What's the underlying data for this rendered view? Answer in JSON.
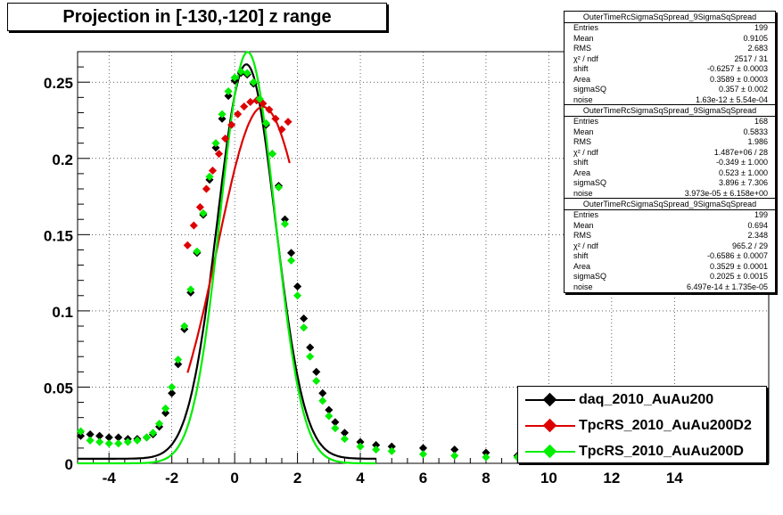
{
  "title": "Projection in [-130,-120] z range",
  "chart_data": {
    "type": "scatter",
    "title": "Projection in [-130,-120] z range",
    "xlabel": "",
    "ylabel": "",
    "xlim": [
      -5,
      17
    ],
    "ylim": [
      0,
      0.27
    ],
    "grid": true,
    "legend_position": "bottom-right",
    "x_ticks": [
      -4,
      -2,
      0,
      2,
      4,
      6,
      8,
      10,
      12,
      14
    ],
    "y_ticks": [
      0,
      0.05,
      0.1,
      0.15,
      0.2,
      0.25
    ],
    "y_tick_labels": [
      "0",
      "0.05",
      "0.1",
      "0.15",
      "0.2",
      "0.25"
    ],
    "series": [
      {
        "name": "daq_2010_AuAu200",
        "color": "#000000",
        "marker": "diamond",
        "points": [
          [
            -4.9,
            0.018
          ],
          [
            -4.6,
            0.019
          ],
          [
            -4.3,
            0.018
          ],
          [
            -4.0,
            0.017
          ],
          [
            -3.7,
            0.017
          ],
          [
            -3.4,
            0.016
          ],
          [
            -3.1,
            0.016
          ],
          [
            -2.8,
            0.017
          ],
          [
            -2.6,
            0.019
          ],
          [
            -2.4,
            0.024
          ],
          [
            -2.2,
            0.033
          ],
          [
            -2.0,
            0.046
          ],
          [
            -1.8,
            0.065
          ],
          [
            -1.6,
            0.088
          ],
          [
            -1.4,
            0.112
          ],
          [
            -1.2,
            0.138
          ],
          [
            -1.0,
            0.163
          ],
          [
            -0.8,
            0.186
          ],
          [
            -0.6,
            0.207
          ],
          [
            -0.4,
            0.226
          ],
          [
            -0.2,
            0.241
          ],
          [
            0.0,
            0.251
          ],
          [
            0.2,
            0.256
          ],
          [
            0.4,
            0.255
          ],
          [
            0.6,
            0.249
          ],
          [
            0.8,
            0.238
          ],
          [
            1.0,
            0.222
          ],
          [
            1.2,
            0.203
          ],
          [
            1.4,
            0.182
          ],
          [
            1.6,
            0.16
          ],
          [
            1.8,
            0.138
          ],
          [
            2.0,
            0.116
          ],
          [
            2.2,
            0.095
          ],
          [
            2.4,
            0.076
          ],
          [
            2.6,
            0.06
          ],
          [
            2.8,
            0.046
          ],
          [
            3.0,
            0.035
          ],
          [
            3.2,
            0.027
          ],
          [
            3.5,
            0.02
          ],
          [
            4.0,
            0.014
          ],
          [
            4.5,
            0.012
          ],
          [
            5.0,
            0.011
          ],
          [
            6.0,
            0.01
          ],
          [
            7.0,
            0.009
          ],
          [
            8.0,
            0.007
          ],
          [
            9.0,
            0.005
          ]
        ]
      },
      {
        "name": "TpcRS_2010_AuAu200D2",
        "color": "#dd0000",
        "marker": "diamond",
        "points": [
          [
            -1.5,
            0.143
          ],
          [
            -1.3,
            0.156
          ],
          [
            -1.1,
            0.168
          ],
          [
            -0.9,
            0.18
          ],
          [
            -0.7,
            0.192
          ],
          [
            -0.5,
            0.203
          ],
          [
            -0.3,
            0.213
          ],
          [
            -0.1,
            0.222
          ],
          [
            0.1,
            0.229
          ],
          [
            0.3,
            0.234
          ],
          [
            0.5,
            0.237
          ],
          [
            0.7,
            0.238
          ],
          [
            0.9,
            0.236
          ],
          [
            1.1,
            0.232
          ],
          [
            1.3,
            0.226
          ],
          [
            1.5,
            0.219
          ],
          [
            1.7,
            0.224
          ]
        ]
      },
      {
        "name": "TpcRS_2010_AuAu200D",
        "color": "#00ee00",
        "marker": "diamond",
        "points": [
          [
            -4.9,
            0.021
          ],
          [
            -4.6,
            0.015
          ],
          [
            -4.3,
            0.014
          ],
          [
            -4.0,
            0.013
          ],
          [
            -3.7,
            0.013
          ],
          [
            -3.4,
            0.014
          ],
          [
            -3.1,
            0.015
          ],
          [
            -2.8,
            0.017
          ],
          [
            -2.6,
            0.02
          ],
          [
            -2.4,
            0.026
          ],
          [
            -2.2,
            0.036
          ],
          [
            -2.0,
            0.05
          ],
          [
            -1.8,
            0.068
          ],
          [
            -1.6,
            0.09
          ],
          [
            -1.4,
            0.114
          ],
          [
            -1.2,
            0.139
          ],
          [
            -1.0,
            0.164
          ],
          [
            -0.8,
            0.188
          ],
          [
            -0.6,
            0.21
          ],
          [
            -0.4,
            0.229
          ],
          [
            -0.2,
            0.244
          ],
          [
            0.0,
            0.253
          ],
          [
            0.2,
            0.257
          ],
          [
            0.4,
            0.256
          ],
          [
            0.6,
            0.25
          ],
          [
            0.8,
            0.239
          ],
          [
            1.0,
            0.223
          ],
          [
            1.2,
            0.203
          ],
          [
            1.4,
            0.181
          ],
          [
            1.6,
            0.157
          ],
          [
            1.8,
            0.133
          ],
          [
            2.0,
            0.11
          ],
          [
            2.2,
            0.089
          ],
          [
            2.4,
            0.07
          ],
          [
            2.6,
            0.054
          ],
          [
            2.8,
            0.041
          ],
          [
            3.0,
            0.031
          ],
          [
            3.2,
            0.023
          ],
          [
            3.5,
            0.016
          ],
          [
            4.0,
            0.011
          ],
          [
            4.5,
            0.009
          ],
          [
            5.0,
            0.008
          ],
          [
            6.0,
            0.006
          ],
          [
            7.0,
            0.005
          ],
          [
            8.0,
            0.004
          ],
          [
            9.0,
            0.004
          ]
        ]
      }
    ],
    "fit_curves": [
      {
        "series": "daq_2010_AuAu200",
        "color": "#000000",
        "mean": 0.373,
        "sigma": 0.92,
        "area": 0.5967,
        "baseline": 0.003
      },
      {
        "series": "TpcRS_2010_AuAu200D2",
        "color": "#dd0000",
        "mean": 0.9,
        "sigma": 1.45,
        "area": 0.85,
        "baseline": 0.0,
        "x_range": [
          -1.5,
          1.75
        ]
      },
      {
        "series": "TpcRS_2010_AuAu200D",
        "color": "#00ee00",
        "mean": 0.412,
        "sigma": 0.87,
        "area": 0.5885,
        "baseline": 0.0
      }
    ]
  },
  "stats_boxes": [
    {
      "title": "OuterTimeRcSigmaSqSpread_9SigmaSqSpread",
      "rows": [
        {
          "label": "Entries",
          "value": "199"
        },
        {
          "label": "Mean",
          "value": "0.9105"
        },
        {
          "label": "RMS",
          "value": "2.683"
        },
        {
          "label": "χ² / ndf",
          "value": "2517 / 31"
        },
        {
          "label": "shift",
          "value": "-0.6257 ± 0.0003"
        },
        {
          "label": "Area",
          "value": "0.3589 ± 0.0003"
        },
        {
          "label": "sigmaSQ",
          "value": "0.357 ± 0.002"
        },
        {
          "label": "noise",
          "value": "1.63e-12 ± 5.54e-04"
        }
      ]
    },
    {
      "title": "OuterTimeRcSigmaSqSpread_9SigmaSqSpread",
      "rows": [
        {
          "label": "Entries",
          "value": "168"
        },
        {
          "label": "Mean",
          "value": "0.5833"
        },
        {
          "label": "RMS",
          "value": "1.986"
        },
        {
          "label": "χ² / ndf",
          "value": "1.487e+06 / 28"
        },
        {
          "label": "shift",
          "value": "-0.349 ± 1.000"
        },
        {
          "label": "Area",
          "value": "0.523 ± 1.000"
        },
        {
          "label": "sigmaSQ",
          "value": "3.896 ± 7.306"
        },
        {
          "label": "noise",
          "value": "3.973e-05 ± 6.158e+00"
        }
      ]
    },
    {
      "title": "OuterTimeRcSigmaSqSpread_9SigmaSqSpread",
      "rows": [
        {
          "label": "Entries",
          "value": "199"
        },
        {
          "label": "Mean",
          "value": "0.694"
        },
        {
          "label": "RMS",
          "value": "2.348"
        },
        {
          "label": "χ² / ndf",
          "value": "965.2 / 29"
        },
        {
          "label": "shift",
          "value": "-0.6586 ± 0.0007"
        },
        {
          "label": "Area",
          "value": "0.3529 ± 0.0001"
        },
        {
          "label": "sigmaSQ",
          "value": "0.2025 ± 0.0015"
        },
        {
          "label": "noise",
          "value": "6.497e-14 ± 1.735e-05"
        }
      ]
    }
  ],
  "legend": {
    "entries": [
      {
        "label": "daq_2010_AuAu200",
        "color": "#000000"
      },
      {
        "label": "TpcRS_2010_AuAu200D2",
        "color": "#dd0000"
      },
      {
        "label": "TpcRS_2010_AuAu200D",
        "color": "#00ee00"
      }
    ]
  }
}
